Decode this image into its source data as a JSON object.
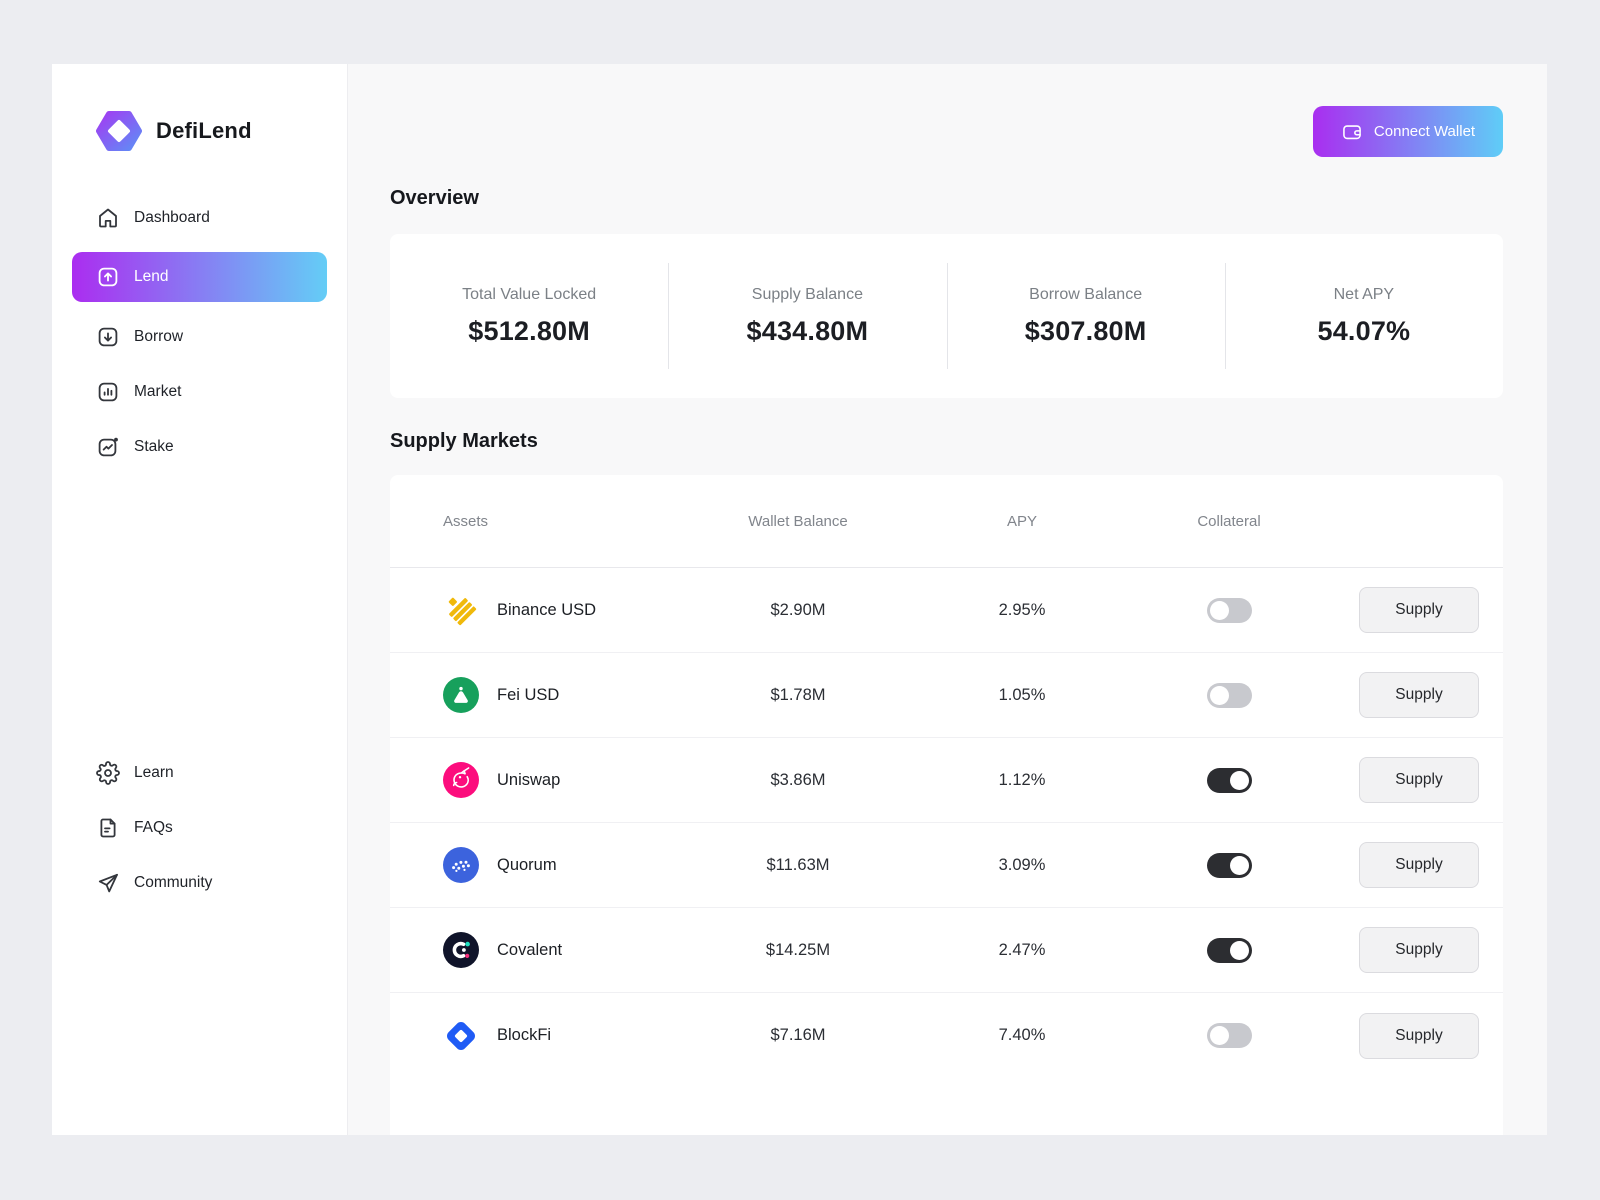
{
  "brand": {
    "name": "DefiLend"
  },
  "sidebar": {
    "items": [
      {
        "label": "Dashboard",
        "icon": "home",
        "active": false
      },
      {
        "label": "Lend",
        "icon": "lend",
        "active": true
      },
      {
        "label": "Borrow",
        "icon": "borrow",
        "active": false
      },
      {
        "label": "Market",
        "icon": "market",
        "active": false
      },
      {
        "label": "Stake",
        "icon": "stake",
        "active": false
      }
    ],
    "footer_items": [
      {
        "label": "Learn",
        "icon": "gear",
        "active": false
      },
      {
        "label": "FAQs",
        "icon": "document",
        "active": false
      },
      {
        "label": "Community",
        "icon": "paper-plane",
        "active": false
      }
    ]
  },
  "header": {
    "connect_wallet_label": "Connect Wallet"
  },
  "overview": {
    "title": "Overview",
    "stats": [
      {
        "label": "Total Value Locked",
        "value": "$512.80M"
      },
      {
        "label": "Supply Balance",
        "value": "$434.80M"
      },
      {
        "label": "Borrow Balance",
        "value": "$307.80M"
      },
      {
        "label": "Net APY",
        "value": "54.07%"
      }
    ]
  },
  "supply_markets": {
    "title": "Supply Markets",
    "columns": [
      "Assets",
      "Wallet Balance",
      "APY",
      "Collateral"
    ],
    "supply_label": "Supply",
    "rows": [
      {
        "asset": "Binance USD",
        "icon": "busd",
        "wallet_balance": "$2.90M",
        "apy": "2.95%",
        "collateral": false
      },
      {
        "asset": "Fei USD",
        "icon": "fei",
        "wallet_balance": "$1.78M",
        "apy": "1.05%",
        "collateral": false
      },
      {
        "asset": "Uniswap",
        "icon": "uniswap",
        "wallet_balance": "$3.86M",
        "apy": "1.12%",
        "collateral": true
      },
      {
        "asset": "Quorum",
        "icon": "quorum",
        "wallet_balance": "$11.63M",
        "apy": "3.09%",
        "collateral": true
      },
      {
        "asset": "Covalent",
        "icon": "covalent",
        "wallet_balance": "$14.25M",
        "apy": "2.47%",
        "collateral": true
      },
      {
        "asset": "BlockFi",
        "icon": "blockfi",
        "wallet_balance": "$7.16M",
        "apy": "7.40%",
        "collateral": false
      }
    ]
  },
  "colors": {
    "accent_gradient_start": "#ab2df0",
    "accent_gradient_end": "#64cdf6",
    "busd_yellow": "#f0b90b",
    "fei_green": "#17a05c",
    "uniswap_pink": "#fc0d7d",
    "quorum_blue": "#3c63dd",
    "covalent_navy": "#10142a",
    "covalent_teal": "#1fe0c0",
    "covalent_magenta": "#f5307e",
    "blockfi_blue": "#1f5bf5",
    "toggle_on": "#2c2d31",
    "toggle_off": "#c8c9ce"
  }
}
